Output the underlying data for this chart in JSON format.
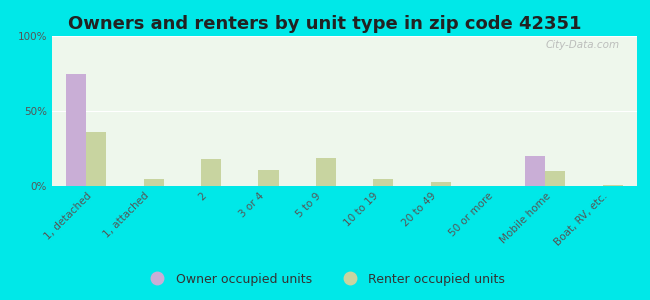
{
  "title": "Owners and renters by unit type in zip code 42351",
  "categories": [
    "1, detached",
    "1, attached",
    "2",
    "3 or 4",
    "5 to 9",
    "10 to 19",
    "20 to 49",
    "50 or more",
    "Mobile home",
    "Boat, RV, etc."
  ],
  "owner_values": [
    75,
    0,
    0,
    0,
    0,
    0,
    0,
    0,
    20,
    0
  ],
  "renter_values": [
    36,
    5,
    18,
    11,
    19,
    5,
    3,
    0,
    10,
    1
  ],
  "owner_color": "#c9aed6",
  "renter_color": "#c8d4a0",
  "ylim": [
    0,
    100
  ],
  "yticks": [
    0,
    50,
    100
  ],
  "yticklabels": [
    "0%",
    "50%",
    "100%"
  ],
  "background_color": "#00e8e8",
  "plot_bg": "#eef7ec",
  "watermark": "City-Data.com",
  "bar_width": 0.35,
  "title_fontsize": 13,
  "tick_fontsize": 7.5,
  "legend_fontsize": 9,
  "title_color": "#222222"
}
